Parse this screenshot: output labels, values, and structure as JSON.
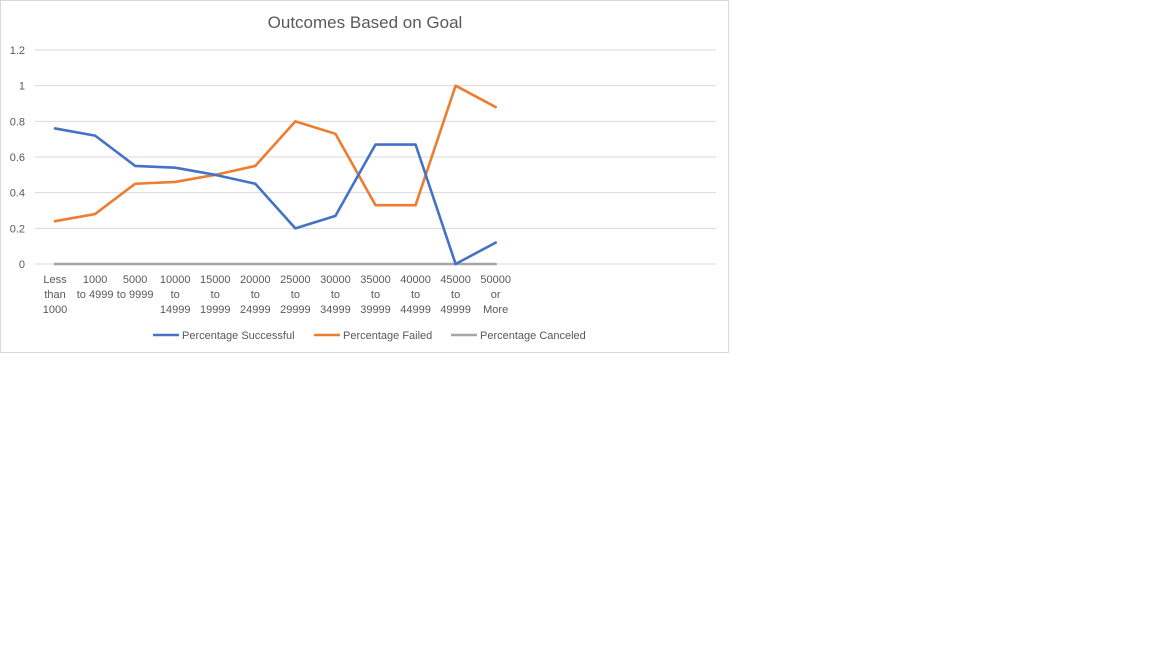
{
  "chart_data": {
    "type": "line",
    "title": "Outcomes Based on Goal",
    "xlabel": "",
    "ylabel": "",
    "ylim": [
      0,
      1.2
    ],
    "yticks": [
      "0",
      "0.2",
      "0.4",
      "0.6",
      "0.8",
      "1",
      "1.2"
    ],
    "grid": true,
    "legend_position": "bottom",
    "categories": [
      "Less than 1000",
      "1000 to 4999",
      "5000 to 9999",
      "10000 to 14999",
      "15000 to 19999",
      "20000 to 24999",
      "25000 to 29999",
      "30000 to 34999",
      "35000 to 39999",
      "40000 to 44999",
      "45000 to 49999",
      "50000 or More"
    ],
    "category_lines": [
      [
        "Less",
        "than",
        "1000"
      ],
      [
        "1000",
        "to 4999"
      ],
      [
        "5000",
        "to 9999"
      ],
      [
        "10000",
        "to",
        "14999"
      ],
      [
        "15000",
        "to",
        "19999"
      ],
      [
        "20000",
        "to",
        "24999"
      ],
      [
        "25000",
        "to",
        "29999"
      ],
      [
        "30000",
        "to",
        "34999"
      ],
      [
        "35000",
        "to",
        "39999"
      ],
      [
        "40000",
        "to",
        "44999"
      ],
      [
        "45000",
        "to",
        "49999"
      ],
      [
        "50000",
        "or",
        "More"
      ]
    ],
    "series": [
      {
        "name": "Percentage Successful",
        "color": "#4472c4",
        "values": [
          0.76,
          0.72,
          0.55,
          0.54,
          0.5,
          0.45,
          0.2,
          0.27,
          0.67,
          0.67,
          0.0,
          0.12
        ]
      },
      {
        "name": "Percentage Failed",
        "color": "#ed7d31",
        "values": [
          0.24,
          0.28,
          0.45,
          0.46,
          0.5,
          0.55,
          0.8,
          0.73,
          0.33,
          0.33,
          1.0,
          0.88
        ]
      },
      {
        "name": "Percentage Canceled",
        "color": "#a5a5a5",
        "values": [
          0,
          0,
          0,
          0,
          0,
          0,
          0,
          0,
          0,
          0,
          0,
          0
        ]
      }
    ]
  }
}
